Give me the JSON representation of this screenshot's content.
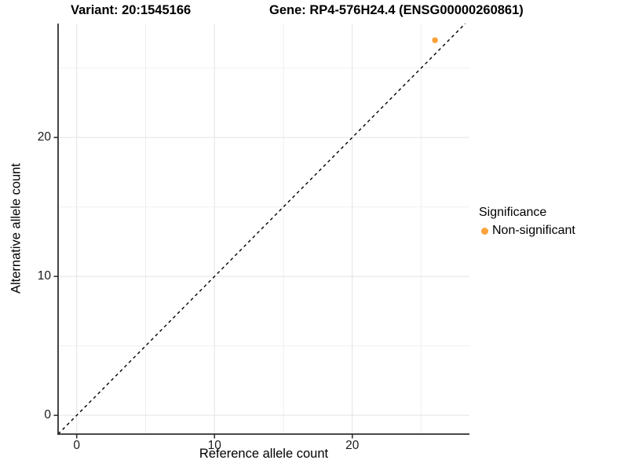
{
  "header": {
    "variant_title": "Variant: 20:1545166",
    "gene_title": "Gene: RP4-576H24.4 (ENSG00000260861)"
  },
  "legend": {
    "title": "Significance",
    "items": [
      {
        "label": "Non-significant",
        "color": "#FFA33C"
      }
    ]
  },
  "chart_data": {
    "type": "scatter",
    "title": "Variant: 20:1545166 / Gene: RP4-576H24.4 (ENSG00000260861)",
    "xlabel": "Reference allele count",
    "ylabel": "Alternative allele count",
    "xlim": [
      -1.35,
      28.5
    ],
    "ylim": [
      -1.35,
      28.2
    ],
    "x_major_ticks": [
      0,
      10,
      20
    ],
    "y_major_ticks": [
      0,
      10,
      20
    ],
    "x_minor_ticks": [
      5,
      15,
      25
    ],
    "y_minor_ticks": [
      5,
      15,
      25
    ],
    "grid": true,
    "legend_position": "right",
    "series": [
      {
        "name": "Non-significant",
        "color": "#FFA33C",
        "points": [
          {
            "x": 26,
            "y": 27
          }
        ]
      }
    ],
    "reference_line": {
      "type": "identity",
      "slope": 1,
      "intercept": 0,
      "style": "dashed",
      "color": "#000000"
    },
    "colors": {
      "grid_major": "#e3e3e3",
      "grid_minor": "#efefef",
      "axis_line": "#2f2f2f",
      "panel_background": "#ffffff"
    }
  }
}
